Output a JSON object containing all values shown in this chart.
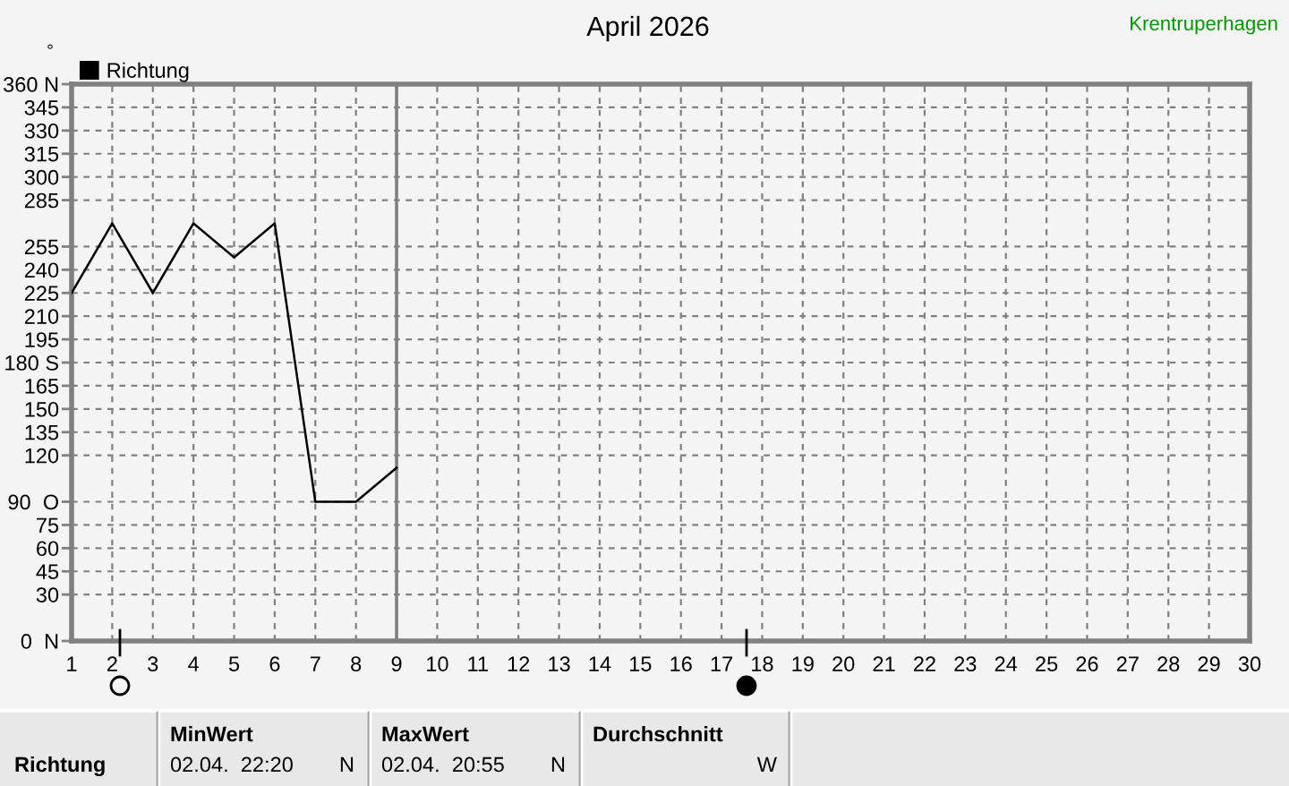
{
  "chart_data": {
    "type": "line",
    "title": "April 2026",
    "subtitle": "Krentruperhagen",
    "ylabel": "°",
    "series": [
      {
        "name": "Richtung",
        "color": "#000000",
        "x": [
          1,
          2,
          3,
          4,
          5,
          6,
          7,
          8,
          9
        ],
        "values": [
          225,
          270,
          225,
          270,
          248,
          270,
          90,
          90,
          112
        ]
      }
    ],
    "xlim": [
      1,
      30
    ],
    "xticks": [
      1,
      2,
      3,
      4,
      5,
      6,
      7,
      8,
      9,
      10,
      11,
      12,
      13,
      14,
      15,
      16,
      17,
      18,
      19,
      20,
      21,
      22,
      23,
      24,
      25,
      26,
      27,
      28,
      29,
      30
    ],
    "ylim": [
      0,
      360
    ],
    "yticks": [
      {
        "value": 0,
        "label": "0  N"
      },
      30,
      45,
      60,
      75,
      {
        "value": 90,
        "label": "90  O"
      },
      120,
      135,
      150,
      165,
      {
        "value": 180,
        "label": "180 S"
      },
      195,
      210,
      225,
      240,
      255,
      285,
      300,
      315,
      330,
      345,
      {
        "value": 360,
        "label": "360 N"
      }
    ],
    "grid": true,
    "legend": "top left",
    "ref_lines": [
      {
        "axis": "x",
        "value": 9,
        "color": "#808080"
      }
    ],
    "annotations": [
      "Richtung",
      "MinWert",
      "02.04.  22:20",
      "N",
      "MaxWert",
      "02.04.  20:55",
      "N",
      "Durchschnitt",
      "W"
    ]
  }
}
